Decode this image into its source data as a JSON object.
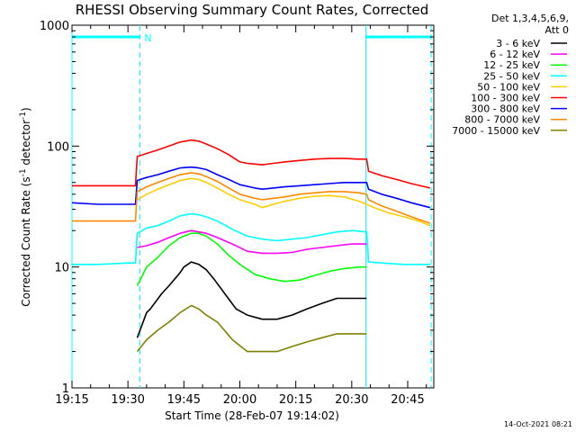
{
  "chart_data": {
    "type": "line",
    "title": "RHESSI Observing Summary Count Rates, Corrected",
    "xlabel": "Start Time (28-Feb-07 19:14:02)",
    "ylabel_prefix": "Corrected Count Rate (s",
    "ylabel_sup1": "-1",
    "ylabel_mid": " detector",
    "ylabel_sup2": "-1",
    "ylabel_suffix": ")",
    "y_scale": "log",
    "ylim": [
      1,
      1000
    ],
    "xlim_minutes": [
      1,
      98
    ],
    "x_ticks": [
      {
        "label": "19:15",
        "m": 1
      },
      {
        "label": "19:30",
        "m": 16
      },
      {
        "label": "19:45",
        "m": 31
      },
      {
        "label": "20:00",
        "m": 46
      },
      {
        "label": "20:15",
        "m": 61
      },
      {
        "label": "20:30",
        "m": 76
      },
      {
        "label": "20:45",
        "m": 91
      }
    ],
    "y_ticks": [
      {
        "label": "1",
        "v": 1
      },
      {
        "label": "10",
        "v": 10
      },
      {
        "label": "100",
        "v": 100
      },
      {
        "label": "1000",
        "v": 1000
      }
    ],
    "legend_header": [
      "Det 1,3,4,5,6,9,",
      "Att 0"
    ],
    "night_marker_label": "N",
    "night_bars": [
      {
        "start": 1,
        "end": 19.2
      },
      {
        "start": 79.8,
        "end": 97.3
      }
    ],
    "series": [
      {
        "name": "3 - 6 keV",
        "color": "#000000",
        "x": [
          1,
          18,
          18.5,
          21,
          22,
          25,
          27,
          30,
          31,
          33,
          35,
          37,
          39,
          42,
          45,
          48,
          52,
          56,
          60,
          64,
          68,
          72,
          76,
          80
        ],
        "y": [
          null,
          null,
          2.6,
          4.2,
          4.5,
          6,
          7,
          9,
          10,
          11,
          10.5,
          9.5,
          8,
          6,
          4.5,
          4,
          3.7,
          3.7,
          4,
          4.5,
          5,
          5.5,
          5.5,
          5.5
        ]
      },
      {
        "name": "6 - 12 keV",
        "color": "#ff00ff",
        "x": [
          1,
          18,
          18.5,
          21,
          24,
          27,
          30,
          33,
          35,
          37,
          40,
          44,
          48,
          52,
          56,
          60,
          64,
          68,
          72,
          76,
          80
        ],
        "y": [
          null,
          null,
          14.5,
          15,
          16,
          17.5,
          19,
          20,
          19.5,
          19,
          17.5,
          15.5,
          13.5,
          13,
          13,
          13.2,
          14,
          14.5,
          15,
          15.5,
          15.5
        ]
      },
      {
        "name": "12 - 25 keV",
        "color": "#00ff00",
        "x": [
          1,
          18,
          18.5,
          21,
          24,
          27,
          30,
          33,
          35,
          37,
          40,
          43,
          46,
          50,
          54,
          58,
          62,
          66,
          70,
          74,
          78,
          80
        ],
        "y": [
          null,
          null,
          7,
          10,
          12,
          15,
          17.5,
          19,
          19,
          18,
          15.5,
          12.5,
          10.5,
          8.7,
          8,
          7.6,
          7.8,
          8.5,
          9.2,
          9.7,
          10,
          10
        ]
      },
      {
        "name": "25 - 50 keV",
        "color": "#00ffff",
        "x": [
          1,
          8,
          16,
          18,
          18.5,
          21,
          24,
          27,
          30,
          33,
          35,
          37,
          40,
          44,
          48,
          52,
          56,
          60,
          64,
          68,
          72,
          76,
          80,
          80.5,
          84,
          90,
          97
        ],
        "y": [
          10.5,
          10.5,
          10.8,
          10.8,
          19,
          21,
          22,
          24,
          26.5,
          27.5,
          27,
          26,
          24,
          20.5,
          18,
          17,
          16.5,
          17,
          17.5,
          18.5,
          19.5,
          20,
          19.5,
          11,
          10.8,
          10.5,
          10.5
        ]
      },
      {
        "name": "50 - 100 keV",
        "color": "#ffcc00",
        "x": [
          1,
          18,
          18.5,
          21,
          24,
          27,
          30,
          33,
          35,
          37,
          40,
          43,
          46,
          50,
          52,
          55,
          58,
          62,
          66,
          70,
          74,
          78,
          82,
          86,
          90,
          94,
          97
        ],
        "y": [
          null,
          null,
          36,
          40,
          44,
          48,
          52,
          54,
          53,
          50,
          45,
          40,
          36,
          33,
          31,
          33,
          35,
          37,
          38.5,
          39,
          38,
          35,
          31,
          28,
          26,
          24,
          22
        ]
      },
      {
        "name": "100 - 300 keV",
        "color": "#ff0000",
        "x": [
          1,
          8,
          16,
          18,
          18.5,
          21,
          24,
          27,
          30,
          33,
          35,
          37,
          40,
          43,
          46,
          48,
          50,
          52,
          55,
          58,
          62,
          66,
          70,
          74,
          78,
          80,
          80.5,
          84,
          88,
          92,
          97
        ],
        "y": [
          47,
          47,
          47,
          47,
          82,
          87,
          93,
          100,
          108,
          112,
          110,
          104,
          95,
          85,
          74,
          72,
          71,
          70,
          72,
          74,
          76,
          78,
          79,
          79,
          78,
          78,
          62,
          57,
          53,
          49,
          45
        ]
      },
      {
        "name": "300 - 800 keV",
        "color": "#0000ff",
        "x": [
          1,
          8,
          16,
          18,
          18.5,
          21,
          24,
          27,
          30,
          33,
          35,
          37,
          40,
          43,
          46,
          50,
          52,
          55,
          58,
          62,
          66,
          70,
          74,
          78,
          80,
          80.5,
          84,
          88,
          92,
          97
        ],
        "y": [
          34,
          33,
          33,
          33,
          52,
          55,
          58,
          62,
          66,
          67,
          66,
          64,
          58,
          53,
          48,
          45,
          44,
          45,
          46,
          47,
          48,
          49,
          50,
          50,
          50,
          44,
          40,
          37,
          34,
          31
        ]
      },
      {
        "name": "800 - 7000 keV",
        "color": "#ff8800",
        "x": [
          1,
          8,
          16,
          18,
          18.5,
          21,
          24,
          27,
          30,
          33,
          35,
          37,
          40,
          43,
          46,
          50,
          52,
          55,
          58,
          62,
          66,
          70,
          74,
          78,
          80,
          80.5,
          84,
          88,
          92,
          97
        ],
        "y": [
          24,
          24,
          24,
          24,
          42,
          46,
          50,
          54,
          58,
          60,
          59,
          56,
          51,
          45,
          40,
          37,
          36,
          37,
          38,
          40,
          41,
          42,
          42,
          41,
          40,
          36,
          32,
          29,
          26,
          23
        ]
      },
      {
        "name": "7000 - 15000 keV",
        "color": "#808000",
        "x": [
          1,
          18,
          18.5,
          21,
          24,
          27,
          30,
          33,
          35,
          37,
          40,
          44,
          48,
          52,
          56,
          60,
          64,
          68,
          72,
          76,
          80
        ],
        "y": [
          null,
          null,
          2,
          2.5,
          3,
          3.5,
          4.2,
          4.8,
          4.5,
          4,
          3.5,
          2.5,
          2,
          2,
          2,
          2.2,
          2.4,
          2.6,
          2.8,
          2.8,
          2.8
        ]
      }
    ]
  },
  "footer": {
    "timestamp": "14-Oct-2021 08:21"
  }
}
